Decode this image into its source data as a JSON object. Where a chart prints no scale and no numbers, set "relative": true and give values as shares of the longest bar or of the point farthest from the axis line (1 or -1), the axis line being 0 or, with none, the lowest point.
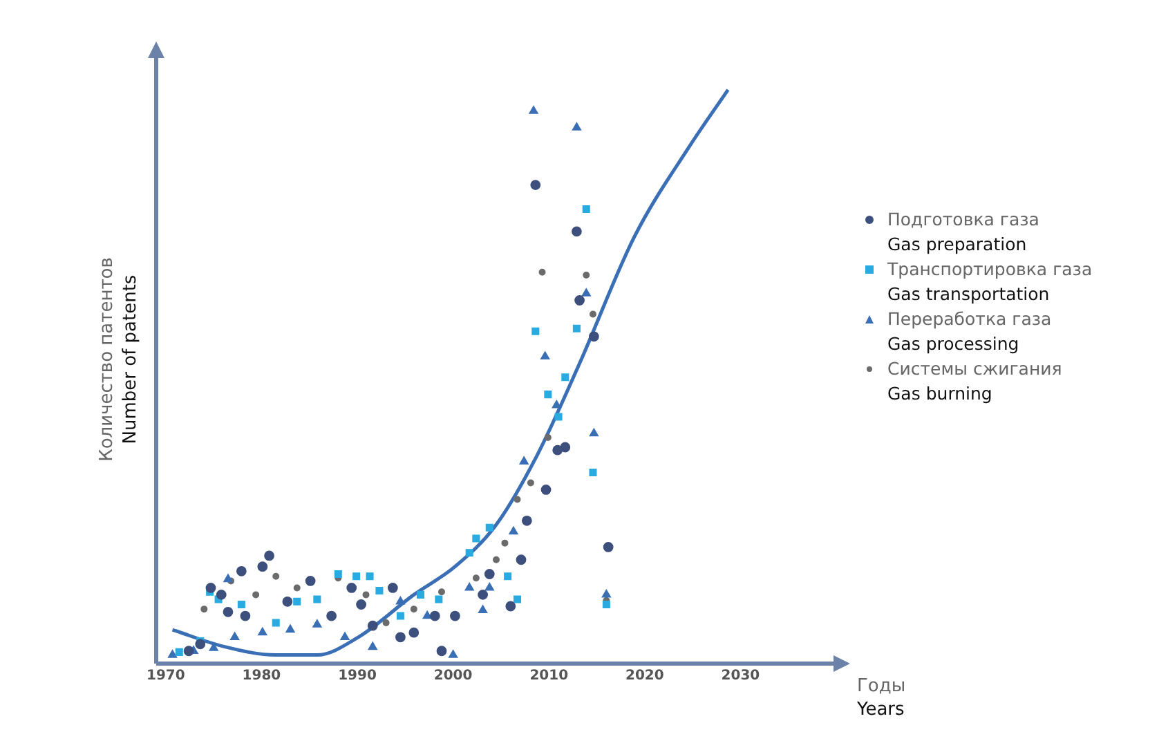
{
  "chart_data": {
    "type": "scatter",
    "xlabel": "Годы\nYears",
    "ylabel": "Количество патентов\nNumber of patents",
    "relative": true,
    "xlim": [
      1969,
      2040
    ],
    "xticks": [
      1970,
      1980,
      1990,
      2000,
      2010,
      2020,
      2030
    ],
    "grid": false,
    "legend": "right",
    "series": [
      {
        "name": "Подготовка газа\nGas preparation",
        "color": "#3d4f7c",
        "marker": "circle",
        "x": [
          1972.4,
          1973.6,
          1974.7,
          1975.8,
          1976.5,
          1977.9,
          1978.3,
          1980.1,
          1980.8,
          1982.7,
          1985.1,
          1987.3,
          1989.4,
          1990.4,
          1991.6,
          1993.7,
          1994.5,
          1995.9,
          1998.1,
          1998.8,
          2000.2,
          2003.1,
          2003.8,
          2006.0,
          2007.1,
          2007.7,
          2008.6,
          2009.7,
          2010.9,
          2011.7,
          2012.9,
          2013.2,
          2014.7,
          2016.2
        ],
        "values": [
          0.022,
          0.034,
          0.132,
          0.12,
          0.09,
          0.161,
          0.083,
          0.169,
          0.188,
          0.108,
          0.144,
          0.083,
          0.132,
          0.103,
          0.066,
          0.132,
          0.046,
          0.054,
          0.083,
          0.022,
          0.083,
          0.12,
          0.156,
          0.1,
          0.181,
          0.249,
          0.834,
          0.303,
          0.372,
          0.377,
          0.753,
          0.633,
          0.57,
          0.203
        ]
      },
      {
        "name": "Транспортировка газа\nGas transportation",
        "color": "#29abe2",
        "marker": "square",
        "x": [
          1971.4,
          1973.6,
          1974.6,
          1975.5,
          1977.9,
          1981.5,
          1983.7,
          1985.8,
          1988.0,
          1989.9,
          1991.3,
          1992.3,
          1994.5,
          1996.6,
          1998.5,
          2001.7,
          2002.4,
          2003.8,
          2005.7,
          2006.7,
          2008.6,
          2009.9,
          2011.0,
          2011.7,
          2012.9,
          2013.9,
          2014.6,
          2016.0
        ],
        "values": [
          0.02,
          0.039,
          0.125,
          0.112,
          0.103,
          0.071,
          0.108,
          0.112,
          0.156,
          0.152,
          0.152,
          0.127,
          0.083,
          0.12,
          0.112,
          0.193,
          0.218,
          0.237,
          0.152,
          0.112,
          0.579,
          0.469,
          0.43,
          0.499,
          0.584,
          0.792,
          0.333,
          0.103
        ]
      },
      {
        "name": "Переработка газа\nGas processing",
        "color": "#3a6fb5",
        "marker": "triangle",
        "x": [
          1970.7,
          1972.9,
          1975.0,
          1976.5,
          1977.2,
          1980.1,
          1983.0,
          1985.8,
          1988.7,
          1991.6,
          1994.5,
          1997.3,
          2000.0,
          2001.7,
          2003.1,
          2003.8,
          2006.3,
          2007.4,
          2008.4,
          2009.6,
          2010.8,
          2012.9,
          2013.9,
          2014.7,
          2016.0
        ],
        "values": [
          0.015,
          0.022,
          0.027,
          0.147,
          0.046,
          0.054,
          0.059,
          0.068,
          0.046,
          0.029,
          0.108,
          0.083,
          0.015,
          0.132,
          0.093,
          0.132,
          0.23,
          0.352,
          0.963,
          0.535,
          0.45,
          0.934,
          0.645,
          0.401,
          0.12
        ]
      },
      {
        "name": "Системы сжигания\nGas burning",
        "color": "#6b6b6b",
        "marker": "circle",
        "x": [
          1974.0,
          1976.8,
          1979.4,
          1981.5,
          1983.7,
          1988.0,
          1990.9,
          1993.0,
          1995.9,
          1998.8,
          2002.4,
          2004.5,
          2005.4,
          2006.7,
          2008.1,
          2009.3,
          2009.9,
          2013.9,
          2014.6,
          2016.0
        ],
        "values": [
          0.095,
          0.144,
          0.12,
          0.152,
          0.132,
          0.149,
          0.12,
          0.071,
          0.095,
          0.125,
          0.149,
          0.181,
          0.21,
          0.286,
          0.315,
          0.682,
          0.394,
          0.677,
          0.609,
          0.11
        ]
      },
      {
        "type": "line",
        "color": "#3a6fb5",
        "marker": "none",
        "x": [
          1970.7,
          1976.0,
          1981.5,
          1985.8,
          1990.1,
          1995.9,
          2000.2,
          2004.5,
          2008.8,
          2013.2,
          2018.9,
          2024.7,
          2028.7
        ],
        "values": [
          0.059,
          0.03,
          0.015,
          0.015,
          0.046,
          0.12,
          0.169,
          0.242,
          0.364,
          0.523,
          0.743,
          0.902,
          1.0
        ]
      }
    ]
  }
}
